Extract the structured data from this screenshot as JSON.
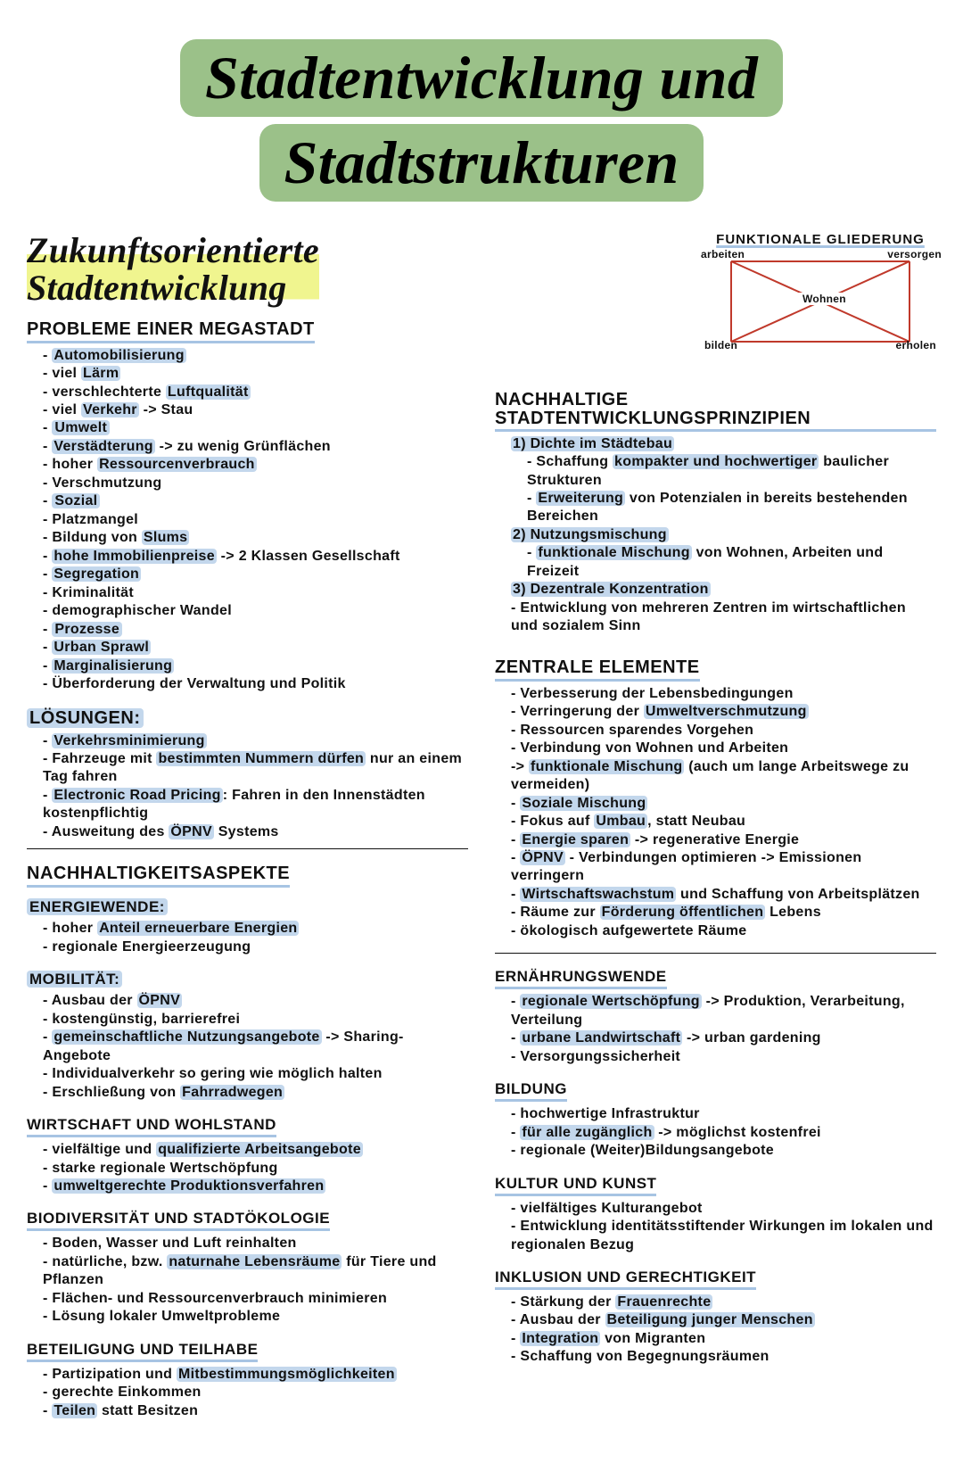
{
  "title_line1": "Stadtentwicklung und",
  "title_line2": "Stadtstrukturen",
  "subtitle_l1": "Zukunftsorientierte",
  "subtitle_l2": "Stadtentwicklung",
  "diag": {
    "title": "FUNKTIONALE GLIEDERUNG",
    "labels": {
      "tl": "arbeiten",
      "tr": "versorgen",
      "mid": "Wohnen",
      "bl": "bilden",
      "br": "erholen"
    }
  },
  "megastadt": {
    "heading": "PROBLEME EINER MEGASTADT",
    "items": [
      {
        "t": "Automobilisierung",
        "hl": "Automobilisierung"
      },
      {
        "t": "viel Lärm",
        "hl": "Lärm"
      },
      {
        "t": "verschlechterte Luftqualität",
        "hl": "Luftqualität"
      },
      {
        "t": "viel Verkehr -> Stau",
        "hl": "Verkehr"
      }
    ],
    "cat1": "Umwelt",
    "cat1_items": [
      {
        "t": "Verstädterung -> zu wenig Grünflächen",
        "hl": "Verstädterung"
      },
      {
        "t": "hoher Ressourcenverbrauch",
        "hl": "Ressourcenverbrauch"
      },
      {
        "t": "Verschmutzung"
      }
    ],
    "cat2": "Sozial",
    "cat2_items": [
      {
        "t": "Platzmangel"
      },
      {
        "t": "Bildung von Slums",
        "hl": "Slums"
      },
      {
        "t": "hohe Immobilienpreise -> 2 Klassen Gesellschaft",
        "hl": "hohe Immobilienpreise"
      },
      {
        "t": "Segregation",
        "hl": "Segregation"
      },
      {
        "t": "Kriminalität"
      },
      {
        "t": "demographischer Wandel"
      }
    ],
    "cat3": "Prozesse",
    "cat3_items": [
      {
        "t": "Urban Sprawl",
        "hl": "Urban Sprawl"
      },
      {
        "t": "Marginalisierung",
        "hl": "Marginalisierung"
      },
      {
        "t": "Überforderung der Verwaltung und Politik"
      }
    ]
  },
  "loesungen": {
    "heading": "LÖSUNGEN:",
    "items": [
      {
        "t": "Verkehrsminimierung",
        "hl": "Verkehrsminimierung"
      },
      {
        "t": "Fahrzeuge mit bestimmten Nummern dürfen nur an einem Tag fahren",
        "hl": "bestimmten Nummern dürfen"
      },
      {
        "t": "Electronic Road Pricing: Fahren in den Innenstädten kostenpflichtig",
        "hl": "Electronic Road Pricing"
      },
      {
        "t": "Ausweitung des ÖPNV Systems",
        "hl": "ÖPNV"
      }
    ]
  },
  "aspekte": {
    "heading": "NACHHALTIGKEITSASPEKTE",
    "energiewende": {
      "h": "ENERGIEWENDE:",
      "items": [
        {
          "t": "hoher Anteil erneuerbare Energien",
          "hl": "Anteil erneuerbare Energien"
        },
        {
          "t": "regionale Energieerzeugung"
        }
      ]
    },
    "mobilitaet": {
      "h": "MOBILITÄT:",
      "items": [
        {
          "t": "Ausbau der ÖPNV",
          "hl": "ÖPNV"
        },
        {
          "t": "kostengünstig, barrierefrei"
        },
        {
          "t": "gemeinschaftliche Nutzungsangebote -> Sharing-Angebote",
          "hl": "gemeinschaftliche Nutzungsangebote"
        },
        {
          "t": "Individualverkehr so gering wie möglich halten"
        },
        {
          "t": "Erschließung von Fahrradwegen",
          "hl": "Fahrradwegen"
        }
      ]
    },
    "wirtschaft": {
      "h": "WIRTSCHAFT UND WOHLSTAND",
      "items": [
        {
          "t": "vielfältige und qualifizierte Arbeitsangebote",
          "hl": "qualifizierte Arbeitsangebote"
        },
        {
          "t": "starke regionale Wertschöpfung"
        },
        {
          "t": "umweltgerechte Produktionsverfahren",
          "hl": "umweltgerechte Produktionsverfahren"
        }
      ]
    },
    "biodiv": {
      "h": "BIODIVERSITÄT UND STADTÖKOLOGIE",
      "items": [
        {
          "t": "Boden, Wasser und Luft reinhalten"
        },
        {
          "t": "natürliche, bzw. naturnahe Lebensräume für Tiere und Pflanzen",
          "hl": "naturnahe Lebensräume"
        },
        {
          "t": "Flächen- und Ressourcenverbrauch minimieren"
        },
        {
          "t": "Lösung lokaler Umweltprobleme"
        }
      ]
    },
    "beteiligung": {
      "h": "BETEILIGUNG UND TEILHABE",
      "items": [
        {
          "t": "Partizipation und Mitbestimmungsmöglichkeiten",
          "hl": "Mitbestimmungsmöglichkeiten"
        },
        {
          "t": "gerechte Einkommen"
        },
        {
          "t": "Teilen statt Besitzen",
          "hl": "Teilen"
        }
      ]
    }
  },
  "prinzipien": {
    "heading": "NACHHALTIGE STADTENTWICKLUNGSPRINZIPIEN",
    "p1": "1) Dichte im Städtebau",
    "p1_items": [
      {
        "t": "Schaffung kompakter und hochwertiger baulicher Strukturen",
        "hl": "kompakter und hochwertiger"
      },
      {
        "t": "Erweiterung von Potenzialen in bereits bestehenden Bereichen",
        "hl": "Erweiterung"
      }
    ],
    "p2": "2) Nutzungsmischung",
    "p2_items": [
      {
        "t": "funktionale Mischung von Wohnen, Arbeiten und Freizeit",
        "hl": "funktionale Mischung"
      }
    ],
    "p3": "3) Dezentrale Konzentration",
    "p3_items": [
      {
        "t": "Entwicklung von mehreren Zentren im wirtschaftlichen und sozialem Sinn"
      }
    ]
  },
  "elemente": {
    "heading": "ZENTRALE ELEMENTE",
    "items": [
      {
        "t": "Verbesserung der Lebensbedingungen"
      },
      {
        "t": "Verringerung der Umweltverschmutzung",
        "hl": "Umweltverschmutzung"
      },
      {
        "t": "Ressourcen sparendes Vorgehen"
      },
      {
        "t": "Verbindung von Wohnen und Arbeiten"
      },
      {
        "t": "-> funktionale Mischung (auch um lange Arbeitswege zu vermeiden)",
        "hl": "funktionale Mischung",
        "nobullet": true
      },
      {
        "t": "Soziale Mischung",
        "hl": "Soziale Mischung"
      },
      {
        "t": "Fokus auf Umbau, statt Neubau",
        "hl": "Umbau"
      },
      {
        "t": "Energie sparen -> regenerative Energie",
        "hl": "Energie sparen"
      },
      {
        "t": "ÖPNV - Verbindungen optimieren -> Emissionen verringern",
        "hl": "ÖPNV"
      },
      {
        "t": "Wirtschaftswachstum und Schaffung von Arbeitsplätzen",
        "hl": "Wirtschaftswachstum"
      },
      {
        "t": "Räume zur Förderung öffentlichen Lebens",
        "hl": "Förderung öffentlichen"
      },
      {
        "t": "ökologisch aufgewertete Räume"
      }
    ]
  },
  "ernaehrung": {
    "h": "ERNÄHRUNGSWENDE",
    "items": [
      {
        "t": "regionale Wertschöpfung -> Produktion, Verarbeitung, Verteilung",
        "hl": "regionale Wertschöpfung"
      },
      {
        "t": "urbane Landwirtschaft -> urban gardening",
        "hl": "urbane Landwirtschaft"
      },
      {
        "t": "Versorgungssicherheit"
      }
    ]
  },
  "bildung": {
    "h": "BILDUNG",
    "items": [
      {
        "t": "hochwertige Infrastruktur"
      },
      {
        "t": "für alle zugänglich -> möglichst kostenfrei",
        "hl": "für alle zugänglich"
      },
      {
        "t": "regionale (Weiter)Bildungsangebote"
      }
    ]
  },
  "kultur": {
    "h": "KULTUR UND KUNST",
    "items": [
      {
        "t": "vielfältiges Kulturangebot"
      },
      {
        "t": "Entwicklung identitätsstiftender Wirkungen im lokalen und regionalen Bezug"
      }
    ]
  },
  "inklusion": {
    "h": "INKLUSION UND GERECHTIGKEIT",
    "items": [
      {
        "t": "Stärkung der Frauenrechte",
        "hl": "Frauenrechte"
      },
      {
        "t": "Ausbau der Beteiligung junger Menschen",
        "hl": "Beteiligung junger Menschen"
      },
      {
        "t": "Integration von Migranten",
        "hl": "Integration"
      },
      {
        "t": "Schaffung von Begegnungsräumen"
      }
    ]
  }
}
